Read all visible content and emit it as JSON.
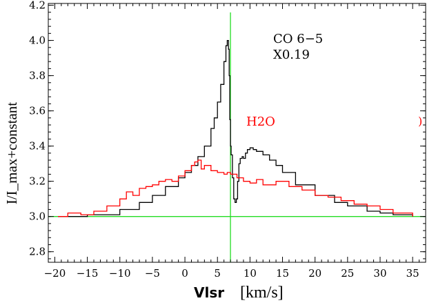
{
  "chart_data": {
    "type": "line",
    "xlabel_bold": "Vlsr",
    "xlabel_unit": "[km/s]",
    "ylabel": "I/I_max+constant",
    "xlim": [
      -21,
      37
    ],
    "ylim": [
      2.74,
      4.21
    ],
    "xticks": [
      -20,
      -15,
      -10,
      -5,
      0,
      5,
      10,
      15,
      20,
      25,
      30,
      35
    ],
    "xtick_labels": [
      "−20",
      "−15",
      "−10",
      "−5",
      "0",
      "5",
      "10",
      "15",
      "20",
      "25",
      "30",
      "35"
    ],
    "yticks": [
      2.8,
      3.0,
      3.2,
      3.4,
      3.6,
      3.8,
      4.0,
      4.2
    ],
    "ytick_labels": [
      "2.8",
      "3.0",
      "3.2",
      "3.4",
      "3.6",
      "3.8",
      "4.0",
      "4.2"
    ],
    "reference_lines": {
      "vertical_x": 7.0,
      "horizontal_y": 3.0,
      "color": "#22dd22"
    },
    "annotations": [
      {
        "text": "CO 6−5",
        "color": "#000000"
      },
      {
        "text": "X0.19",
        "color": "#000000"
      },
      {
        "text": "H2O",
        "color": "#ff0000"
      }
    ],
    "series": [
      {
        "color": "#000000",
        "x": [
          -19.5,
          -15,
          -10,
          -7,
          -5,
          -3,
          -1,
          0,
          1,
          2,
          3,
          4,
          4.5,
          5,
          5.5,
          6,
          6.3,
          6.5,
          6.7,
          6.8,
          6.9,
          7.0,
          7.1,
          7.3,
          7.5,
          7.7,
          7.9,
          8.1,
          8.3,
          8.5,
          8.8,
          9.0,
          9.3,
          9.6,
          10.0,
          10.5,
          11,
          12,
          13,
          14,
          15,
          17,
          20,
          23,
          25,
          28,
          30,
          32,
          35
        ],
        "y": [
          3.0,
          3.01,
          3.04,
          3.08,
          3.12,
          3.17,
          3.22,
          3.25,
          3.29,
          3.34,
          3.4,
          3.5,
          3.56,
          3.65,
          3.75,
          3.88,
          3.97,
          4.0,
          3.95,
          3.8,
          3.55,
          3.4,
          3.35,
          3.22,
          3.1,
          3.08,
          3.1,
          3.2,
          3.3,
          3.33,
          3.34,
          3.33,
          3.36,
          3.38,
          3.39,
          3.38,
          3.37,
          3.35,
          3.32,
          3.29,
          3.25,
          3.18,
          3.12,
          3.08,
          3.06,
          3.03,
          3.02,
          3.01,
          3.0
        ]
      },
      {
        "color": "#ff0000",
        "x": [
          -19.5,
          -18,
          -16,
          -14,
          -12,
          -10,
          -9,
          -8,
          -7,
          -6,
          -5,
          -4,
          -3,
          -2,
          -1,
          0,
          1,
          1.5,
          2,
          2.5,
          3,
          4,
          5,
          6,
          6.5,
          7,
          8,
          9,
          10,
          11,
          12,
          14,
          16,
          18,
          20,
          22,
          24,
          26,
          28,
          30,
          32,
          34,
          35
        ],
        "y": [
          3.0,
          3.02,
          3.01,
          3.03,
          3.06,
          3.1,
          3.14,
          3.12,
          3.16,
          3.17,
          3.18,
          3.2,
          3.21,
          3.2,
          3.23,
          3.26,
          3.29,
          3.31,
          3.32,
          3.27,
          3.29,
          3.26,
          3.25,
          3.24,
          3.25,
          3.24,
          3.22,
          3.2,
          3.19,
          3.21,
          3.18,
          3.2,
          3.17,
          3.15,
          3.12,
          3.11,
          3.09,
          3.07,
          3.06,
          3.04,
          3.02,
          3.02,
          3.0
        ]
      }
    ]
  }
}
